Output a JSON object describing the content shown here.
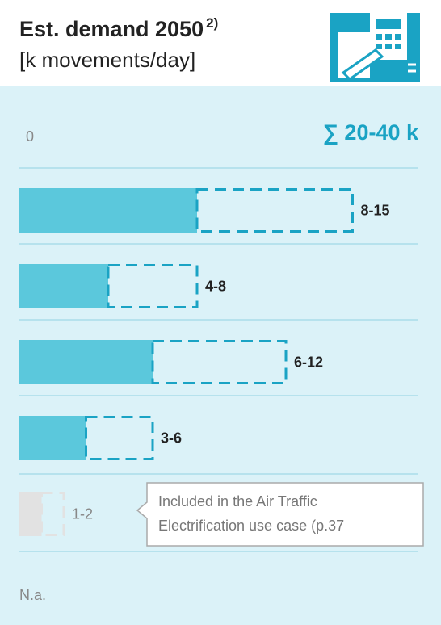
{
  "chart_data": {
    "type": "range_bar",
    "title": "Est. demand 2050",
    "title_note": "2)",
    "subtitle": "[k movements/day]",
    "axis_origin_label": "0",
    "total_label": "∑ 20-40 k",
    "low": [
      8,
      4,
      6,
      3,
      1
    ],
    "high": [
      15,
      8,
      12,
      6,
      2
    ],
    "value_labels": [
      "8-15",
      "4-8",
      "6-12",
      "3-6",
      "1-2"
    ],
    "muted": [
      false,
      false,
      false,
      false,
      true
    ],
    "xlim": [
      0,
      16
    ],
    "color": "#5bc8dc",
    "range_color": "#1aa3c4",
    "muted_color": "#e2e2e2",
    "callout": [
      "Included in the Air Traffic",
      "Electrification use case (p.37"
    ],
    "na_label": "N.a."
  }
}
